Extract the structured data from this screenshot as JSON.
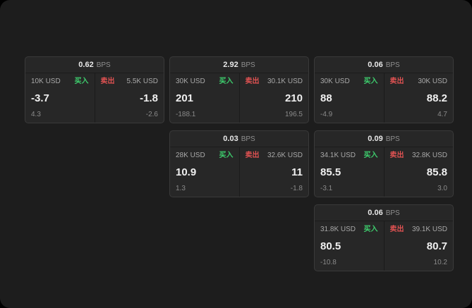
{
  "labels": {
    "bps": "BPS",
    "buy": "买入",
    "sell": "卖出"
  },
  "colors": {
    "background": "#1d1d1d",
    "card_background": "#272727",
    "buy_green": "#3ecf6e",
    "sell_red": "#e05252"
  },
  "cards": [
    {
      "bps": "0.62",
      "buy": {
        "amount": "10K USD",
        "price": "-3.7",
        "delta": "4.3"
      },
      "sell": {
        "amount": "5.5K USD",
        "price": "-1.8",
        "delta": "-2.6"
      }
    },
    {
      "bps": "2.92",
      "buy": {
        "amount": "30K USD",
        "price": "201",
        "delta": "-188.1"
      },
      "sell": {
        "amount": "30.1K USD",
        "price": "210",
        "delta": "196.5"
      }
    },
    {
      "bps": "0.06",
      "buy": {
        "amount": "30K USD",
        "price": "88",
        "delta": "-4.9"
      },
      "sell": {
        "amount": "30K USD",
        "price": "88.2",
        "delta": "4.7"
      }
    },
    {
      "bps": "0.03",
      "buy": {
        "amount": "28K USD",
        "price": "10.9",
        "delta": "1.3"
      },
      "sell": {
        "amount": "32.6K USD",
        "price": "11",
        "delta": "-1.8"
      }
    },
    {
      "bps": "0.09",
      "buy": {
        "amount": "34.1K USD",
        "price": "85.5",
        "delta": "-3.1"
      },
      "sell": {
        "amount": "32.8K USD",
        "price": "85.8",
        "delta": "3.0"
      }
    },
    {
      "bps": "0.06",
      "buy": {
        "amount": "31.8K USD",
        "price": "80.5",
        "delta": "-10.8"
      },
      "sell": {
        "amount": "39.1K USD",
        "price": "80.7",
        "delta": "10.2"
      }
    }
  ]
}
